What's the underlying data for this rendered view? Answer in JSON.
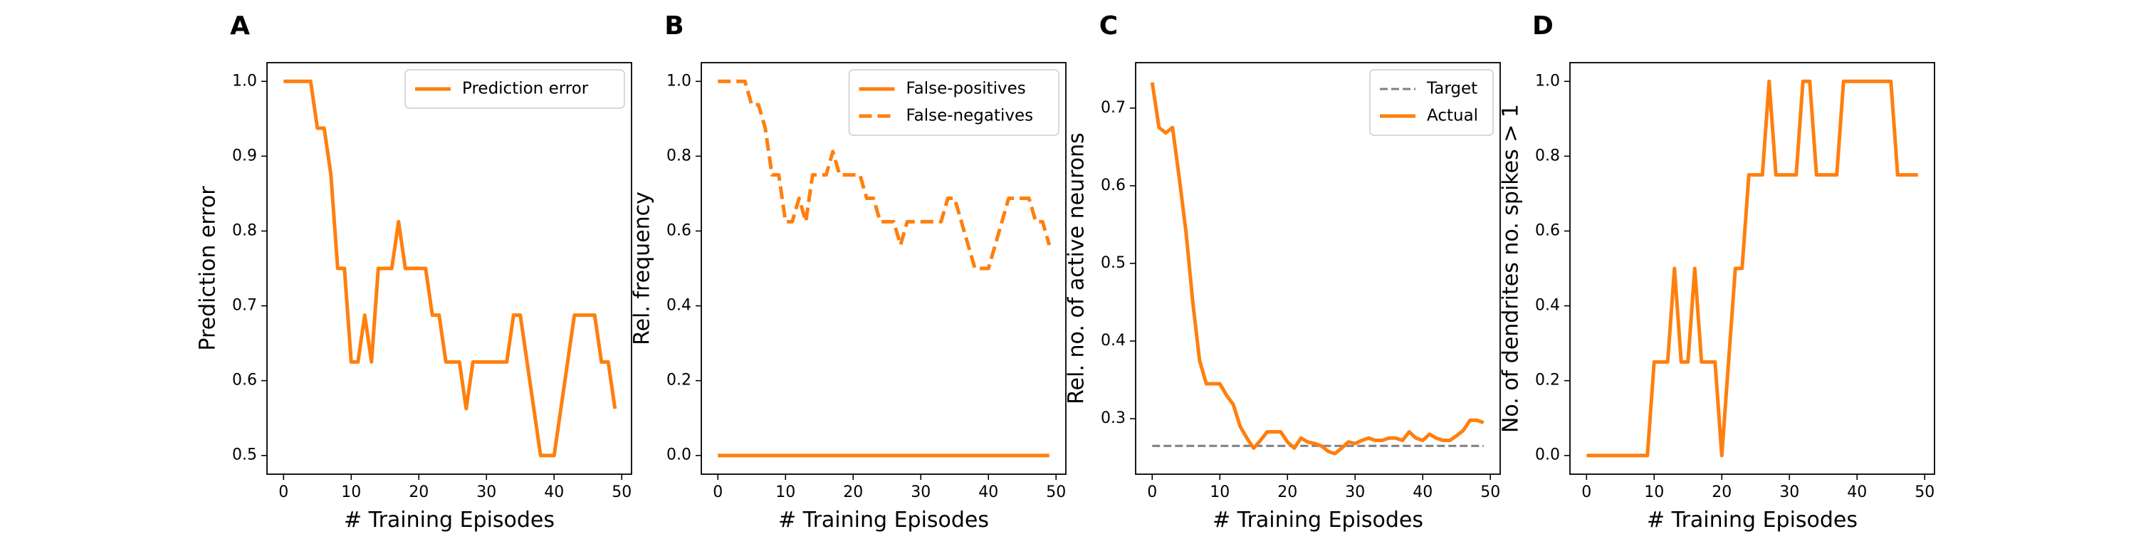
{
  "colors": {
    "series": "#ff7f0e",
    "target": "#7f7f7f",
    "axis": "#000000",
    "legend_border": "#cccccc"
  },
  "chart_data": [
    {
      "panel": "A",
      "type": "line",
      "xlabel": "# Training Episodes",
      "ylabel": "Prediction error",
      "xlim": [
        -2.45,
        51.45
      ],
      "ylim": [
        0.475,
        1.025
      ],
      "xticks": [
        0,
        10,
        20,
        30,
        40,
        50
      ],
      "yticks": [
        0.5,
        0.6,
        0.7,
        0.8,
        0.9,
        1.0
      ],
      "ytick_decimals": 1,
      "legend_position": "top-right",
      "series": [
        {
          "name": "Prediction error",
          "color": "#ff7f0e",
          "dash": "solid",
          "x": [
            0,
            1,
            2,
            3,
            4,
            5,
            6,
            7,
            8,
            9,
            10,
            11,
            12,
            13,
            14,
            15,
            16,
            17,
            18,
            19,
            20,
            21,
            22,
            23,
            24,
            25,
            26,
            27,
            28,
            29,
            30,
            31,
            32,
            33,
            34,
            35,
            36,
            37,
            38,
            39,
            40,
            41,
            42,
            43,
            44,
            45,
            46,
            47,
            48,
            49
          ],
          "y": [
            1.0,
            1.0,
            1.0,
            1.0,
            1.0,
            0.9375,
            0.9375,
            0.875,
            0.75,
            0.75,
            0.625,
            0.625,
            0.6875,
            0.625,
            0.75,
            0.75,
            0.75,
            0.8125,
            0.75,
            0.75,
            0.75,
            0.75,
            0.6875,
            0.6875,
            0.625,
            0.625,
            0.625,
            0.5625,
            0.625,
            0.625,
            0.625,
            0.625,
            0.625,
            0.625,
            0.6875,
            0.6875,
            0.625,
            0.5625,
            0.5,
            0.5,
            0.5,
            0.5625,
            0.625,
            0.6875,
            0.6875,
            0.6875,
            0.6875,
            0.625,
            0.625,
            0.5625
          ]
        }
      ]
    },
    {
      "panel": "B",
      "type": "line",
      "xlabel": "# Training Episodes",
      "ylabel": "Rel. frequency",
      "xlim": [
        -2.45,
        51.45
      ],
      "ylim": [
        -0.05,
        1.05
      ],
      "xticks": [
        0,
        10,
        20,
        30,
        40,
        50
      ],
      "yticks": [
        0.0,
        0.2,
        0.4,
        0.6,
        0.8,
        1.0
      ],
      "ytick_decimals": 1,
      "legend_position": "top-right",
      "series": [
        {
          "name": "False-positives",
          "color": "#ff7f0e",
          "dash": "solid",
          "x": [
            0,
            49
          ],
          "y": [
            0.0,
            0.0
          ]
        },
        {
          "name": "False-negatives",
          "color": "#ff7f0e",
          "dash": "dashed",
          "x": [
            0,
            1,
            2,
            3,
            4,
            5,
            6,
            7,
            8,
            9,
            10,
            11,
            12,
            13,
            14,
            15,
            16,
            17,
            18,
            19,
            20,
            21,
            22,
            23,
            24,
            25,
            26,
            27,
            28,
            29,
            30,
            31,
            32,
            33,
            34,
            35,
            36,
            37,
            38,
            39,
            40,
            41,
            42,
            43,
            44,
            45,
            46,
            47,
            48,
            49
          ],
          "y": [
            1.0,
            1.0,
            1.0,
            1.0,
            1.0,
            0.9375,
            0.9375,
            0.875,
            0.75,
            0.75,
            0.625,
            0.625,
            0.6875,
            0.625,
            0.75,
            0.75,
            0.75,
            0.8125,
            0.75,
            0.75,
            0.75,
            0.75,
            0.6875,
            0.6875,
            0.625,
            0.625,
            0.625,
            0.5625,
            0.625,
            0.625,
            0.625,
            0.625,
            0.625,
            0.625,
            0.6875,
            0.6875,
            0.625,
            0.5625,
            0.5,
            0.5,
            0.5,
            0.5625,
            0.625,
            0.6875,
            0.6875,
            0.6875,
            0.6875,
            0.625,
            0.625,
            0.5625
          ]
        }
      ]
    },
    {
      "panel": "C",
      "type": "line",
      "xlabel": "# Training Episodes",
      "ylabel": "Rel. no. of active neurons",
      "xlim": [
        -2.45,
        51.45
      ],
      "ylim": [
        0.2285,
        0.7585
      ],
      "xticks": [
        0,
        10,
        20,
        30,
        40,
        50
      ],
      "yticks": [
        0.3,
        0.4,
        0.5,
        0.6,
        0.7
      ],
      "ytick_decimals": 1,
      "legend_position": "top-right",
      "series": [
        {
          "name": "Target",
          "color": "#7f7f7f",
          "dash": "dashed-thin",
          "x": [
            0,
            49
          ],
          "y": [
            0.265,
            0.265
          ]
        },
        {
          "name": "Actual",
          "color": "#ff7f0e",
          "dash": "solid",
          "x": [
            0,
            1,
            2,
            3,
            4,
            5,
            6,
            7,
            8,
            9,
            10,
            11,
            12,
            13,
            14,
            15,
            16,
            17,
            18,
            19,
            20,
            21,
            22,
            23,
            24,
            25,
            26,
            27,
            28,
            29,
            30,
            31,
            32,
            33,
            34,
            35,
            36,
            37,
            38,
            39,
            40,
            41,
            42,
            43,
            44,
            45,
            46,
            47,
            48,
            49
          ],
          "y": [
            0.733,
            0.675,
            0.668,
            0.675,
            0.61,
            0.54,
            0.45,
            0.375,
            0.345,
            0.345,
            0.345,
            0.33,
            0.318,
            0.29,
            0.275,
            0.262,
            0.272,
            0.283,
            0.283,
            0.283,
            0.27,
            0.262,
            0.275,
            0.27,
            0.268,
            0.265,
            0.258,
            0.255,
            0.262,
            0.27,
            0.268,
            0.272,
            0.275,
            0.272,
            0.272,
            0.275,
            0.275,
            0.272,
            0.283,
            0.275,
            0.272,
            0.28,
            0.275,
            0.272,
            0.272,
            0.278,
            0.285,
            0.298,
            0.298,
            0.295
          ]
        }
      ]
    },
    {
      "panel": "D",
      "type": "line",
      "xlabel": "# Training Episodes",
      "ylabel": "No. of dendrites no. spikes > 1",
      "xlim": [
        -2.45,
        51.45
      ],
      "ylim": [
        -0.05,
        1.05
      ],
      "xticks": [
        0,
        10,
        20,
        30,
        40,
        50
      ],
      "yticks": [
        0.0,
        0.2,
        0.4,
        0.6,
        0.8,
        1.0
      ],
      "ytick_decimals": 1,
      "series": [
        {
          "name": "",
          "color": "#ff7f0e",
          "dash": "solid",
          "x": [
            0,
            1,
            2,
            3,
            4,
            5,
            6,
            7,
            8,
            9,
            10,
            11,
            12,
            13,
            14,
            15,
            16,
            17,
            18,
            19,
            20,
            21,
            22,
            23,
            24,
            25,
            26,
            27,
            28,
            29,
            30,
            31,
            32,
            33,
            34,
            35,
            36,
            37,
            38,
            39,
            40,
            41,
            42,
            43,
            44,
            45,
            46,
            47,
            48,
            49
          ],
          "y": [
            0,
            0,
            0,
            0,
            0,
            0,
            0,
            0,
            0,
            0,
            0.25,
            0.25,
            0.25,
            0.5,
            0.25,
            0.25,
            0.5,
            0.25,
            0.25,
            0.25,
            0,
            0.25,
            0.5,
            0.5,
            0.75,
            0.75,
            0.75,
            1.0,
            0.75,
            0.75,
            0.75,
            0.75,
            1.0,
            1.0,
            0.75,
            0.75,
            0.75,
            0.75,
            1.0,
            1.0,
            1.0,
            1.0,
            1.0,
            1.0,
            1.0,
            1.0,
            0.75,
            0.75,
            0.75,
            0.75
          ]
        }
      ]
    }
  ]
}
